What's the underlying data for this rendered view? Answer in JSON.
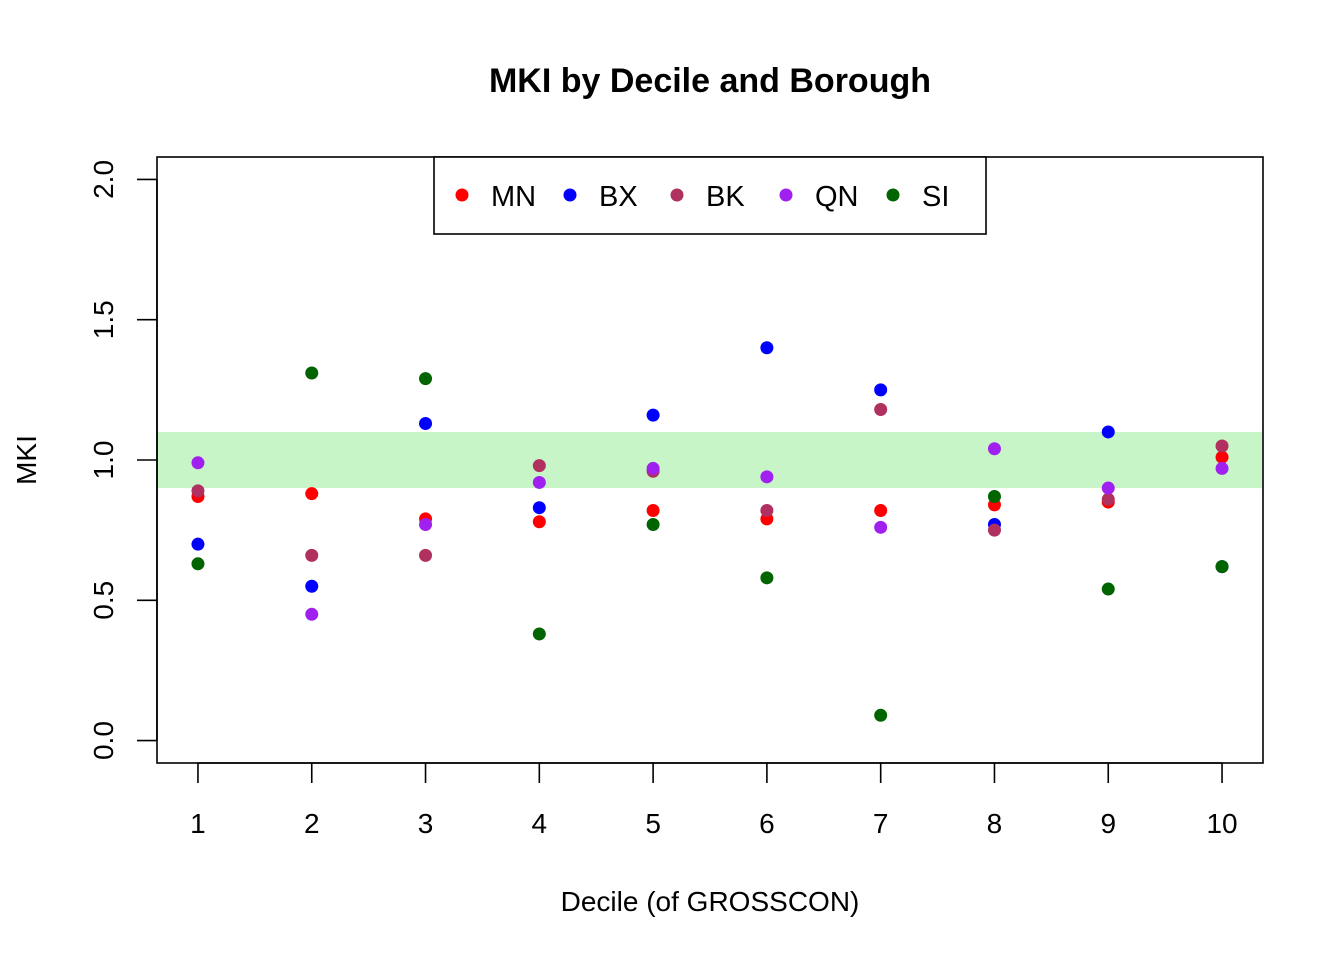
{
  "chart_data": {
    "type": "scatter",
    "title": "MKI by Decile and Borough",
    "xlabel": "Decile (of GROSSCON)",
    "ylabel": "MKI",
    "xlim": [
      0.64,
      10.36
    ],
    "ylim": [
      -0.08,
      2.08
    ],
    "x_ticks": [
      "1",
      "2",
      "3",
      "4",
      "5",
      "6",
      "7",
      "8",
      "9",
      "10"
    ],
    "y_ticks": [
      "0.0",
      "0.5",
      "1.0",
      "1.5",
      "2.0"
    ],
    "band": {
      "from": 0.9,
      "to": 1.1,
      "color": "#c8f5c8"
    },
    "legend_position": "top-center",
    "series": [
      {
        "name": "MN",
        "color": "#ff0000",
        "x": [
          1,
          2,
          3,
          4,
          5,
          6,
          7,
          8,
          9,
          10
        ],
        "y": [
          0.87,
          0.88,
          0.79,
          0.78,
          0.82,
          0.79,
          0.82,
          0.84,
          0.85,
          1.01
        ]
      },
      {
        "name": "BX",
        "color": "#0000ff",
        "x": [
          1,
          2,
          3,
          4,
          5,
          6,
          7,
          8,
          9,
          10
        ],
        "y": [
          0.7,
          0.55,
          1.13,
          0.83,
          1.16,
          1.4,
          1.25,
          0.77,
          1.1,
          0.62
        ]
      },
      {
        "name": "BK",
        "color": "#b03060",
        "x": [
          1,
          2,
          3,
          4,
          5,
          6,
          7,
          8,
          9,
          10
        ],
        "y": [
          0.89,
          0.66,
          0.66,
          0.98,
          0.96,
          0.82,
          1.18,
          0.75,
          0.86,
          1.05
        ]
      },
      {
        "name": "QN",
        "color": "#a020f0",
        "x": [
          1,
          2,
          3,
          4,
          5,
          6,
          7,
          8,
          9,
          10
        ],
        "y": [
          0.99,
          0.45,
          0.77,
          0.92,
          0.97,
          0.94,
          0.76,
          1.04,
          0.9,
          0.97
        ]
      },
      {
        "name": "SI",
        "color": "#006400",
        "x": [
          1,
          2,
          3,
          4,
          5,
          6,
          7,
          8,
          9,
          10
        ],
        "y": [
          0.63,
          1.31,
          1.29,
          0.38,
          0.77,
          0.58,
          0.09,
          0.87,
          0.54,
          0.62
        ]
      }
    ]
  }
}
